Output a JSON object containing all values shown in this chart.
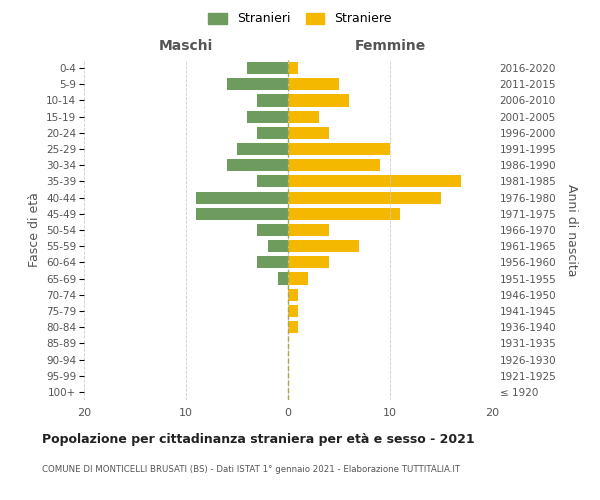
{
  "age_groups": [
    "100+",
    "95-99",
    "90-94",
    "85-89",
    "80-84",
    "75-79",
    "70-74",
    "65-69",
    "60-64",
    "55-59",
    "50-54",
    "45-49",
    "40-44",
    "35-39",
    "30-34",
    "25-29",
    "20-24",
    "15-19",
    "10-14",
    "5-9",
    "0-4"
  ],
  "birth_years": [
    "≤ 1920",
    "1921-1925",
    "1926-1930",
    "1931-1935",
    "1936-1940",
    "1941-1945",
    "1946-1950",
    "1951-1955",
    "1956-1960",
    "1961-1965",
    "1966-1970",
    "1971-1975",
    "1976-1980",
    "1981-1985",
    "1986-1990",
    "1991-1995",
    "1996-2000",
    "2001-2005",
    "2006-2010",
    "2011-2015",
    "2016-2020"
  ],
  "males": [
    0,
    0,
    0,
    0,
    0,
    0,
    0,
    1,
    3,
    2,
    3,
    9,
    9,
    3,
    6,
    5,
    3,
    4,
    3,
    6,
    4
  ],
  "females": [
    0,
    0,
    0,
    0,
    1,
    1,
    1,
    2,
    4,
    7,
    4,
    11,
    15,
    17,
    9,
    10,
    4,
    3,
    6,
    5,
    1
  ],
  "male_color": "#6d9c5e",
  "female_color": "#f5b800",
  "title": "Popolazione per cittadinanza straniera per età e sesso - 2021",
  "subtitle": "COMUNE DI MONTICELLI BRUSATI (BS) - Dati ISTAT 1° gennaio 2021 - Elaborazione TUTTITALIA.IT",
  "ylabel_left": "Fasce di età",
  "ylabel_right": "Anni di nascita",
  "xlabel_left": "Maschi",
  "xlabel_right": "Femmine",
  "legend_male": "Stranieri",
  "legend_female": "Straniere",
  "xlim": 20,
  "background_color": "#ffffff",
  "grid_color": "#cccccc",
  "bar_height": 0.75
}
